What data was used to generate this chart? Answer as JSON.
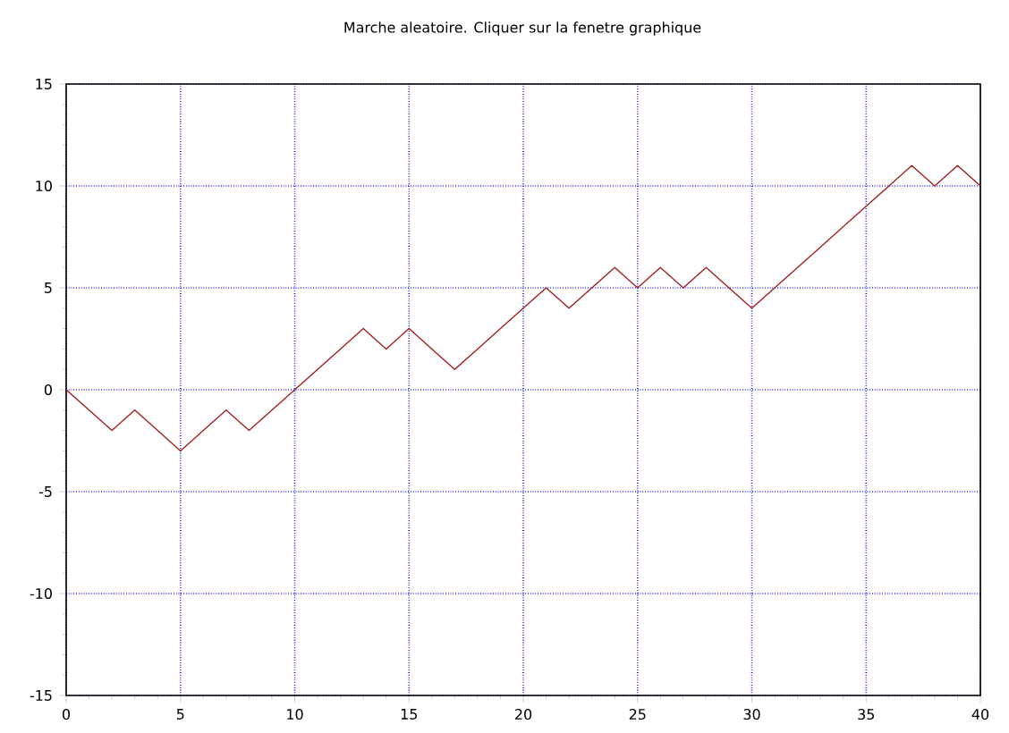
{
  "chart_data": {
    "type": "line",
    "title": "Marche aleatoire. Cliquer sur la fenetre graphique",
    "x": [
      0,
      1,
      2,
      3,
      4,
      5,
      6,
      7,
      8,
      9,
      10,
      11,
      12,
      13,
      14,
      15,
      16,
      17,
      18,
      19,
      20,
      21,
      22,
      23,
      24,
      25,
      26,
      27,
      28,
      29,
      30,
      31,
      32,
      33,
      34,
      35,
      36,
      37,
      38,
      39,
      40
    ],
    "series": [
      {
        "color": "#a02020",
        "values": [
          0,
          -1,
          -2,
          -1,
          -2,
          -3,
          -2,
          -1,
          -2,
          -1,
          0,
          1,
          2,
          3,
          2,
          3,
          2,
          1,
          2,
          3,
          4,
          5,
          4,
          5,
          6,
          5,
          6,
          5,
          6,
          5,
          4,
          5,
          6,
          7,
          8,
          9,
          10,
          11,
          10,
          11,
          10
        ]
      }
    ],
    "xlim": [
      0,
      40
    ],
    "ylim": [
      -15,
      15
    ],
    "xticks": [
      0,
      5,
      10,
      15,
      20,
      25,
      30,
      35,
      40
    ],
    "yticks": [
      -15,
      -10,
      -5,
      0,
      5,
      10,
      15
    ],
    "grid": true,
    "marker": "none",
    "line_style": "solid"
  }
}
